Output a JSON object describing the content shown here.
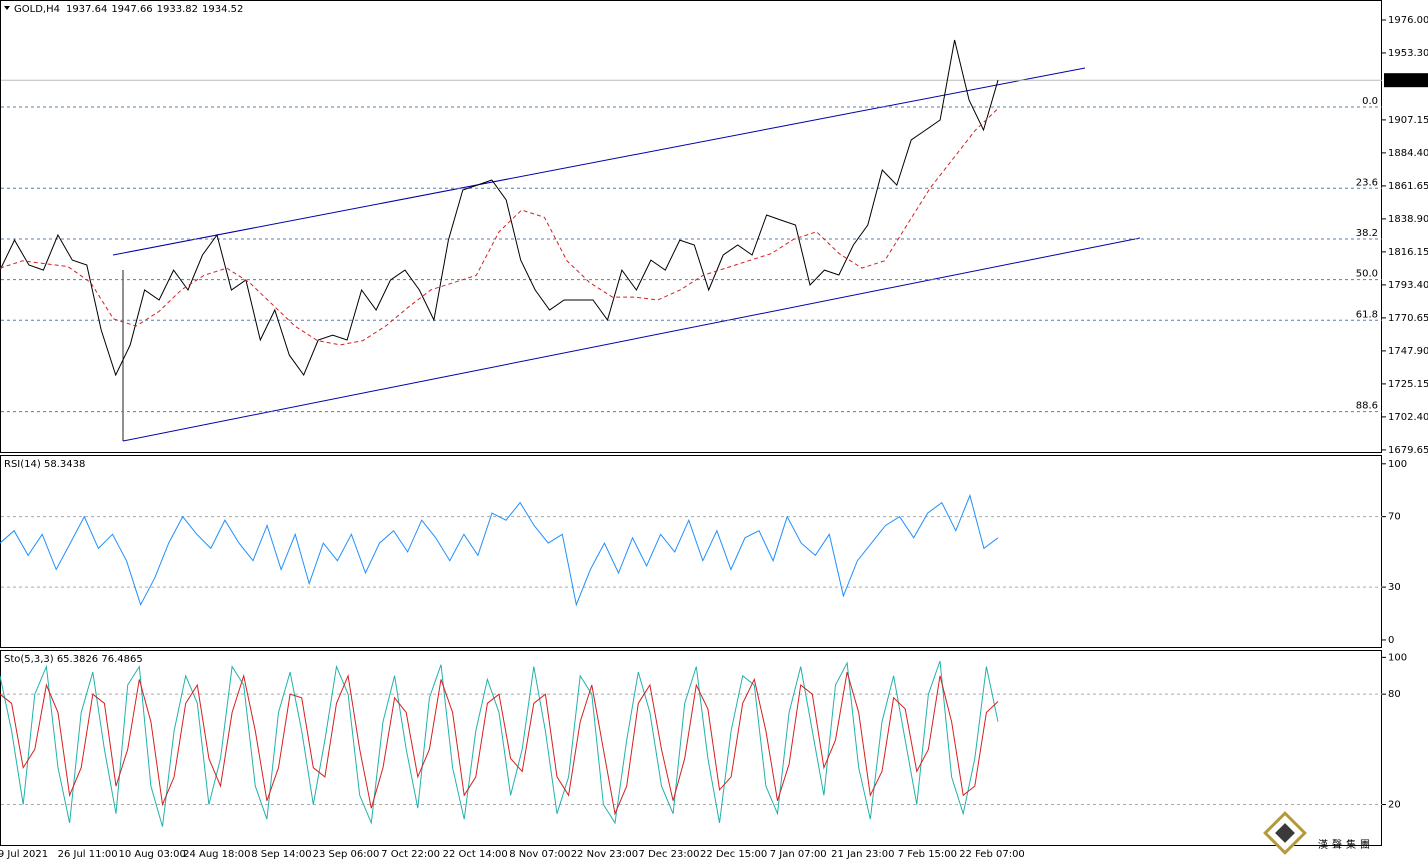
{
  "chart_data": [
    {
      "type": "line",
      "title": "GOLD,H4",
      "ohlc": [
        1937.64,
        1947.66,
        1933.82,
        1934.52
      ],
      "x_labels": [
        "9 Jul 2021",
        "26 Jul 11:00",
        "10 Aug 03:00",
        "24 Aug 18:00",
        "8 Sep 14:00",
        "23 Sep 06:00",
        "7 Oct 22:00",
        "22 Oct 14:00",
        "8 Nov 07:00",
        "22 Nov 23:00",
        "7 Dec 23:00",
        "22 Dec 15:00",
        "7 Jan 07:00",
        "21 Jan 23:00",
        "7 Feb 15:00",
        "22 Feb 07:00"
      ],
      "series": [
        {
          "color": "#000000",
          "dashed": false,
          "values": [
            1803.6,
            1824.3,
            1807.1,
            1803.6,
            1827.8,
            1810.5,
            1807.1,
            1762.3,
            1731.3,
            1752.0,
            1789.9,
            1783.0,
            1803.6,
            1789.9,
            1814.0,
            1827.8,
            1789.9,
            1796.8,
            1755.4,
            1776.1,
            1745.0,
            1731.3,
            1755.4,
            1758.8,
            1755.4,
            1789.9,
            1776.1,
            1796.8,
            1803.6,
            1789.9,
            1769.2,
            1824.3,
            1858.8,
            1862.2,
            1865.7,
            1851.9,
            1810.5,
            1789.9,
            1776.1,
            1783.0,
            1783.0,
            1783.0,
            1769.2,
            1803.6,
            1789.9,
            1810.5,
            1803.6,
            1824.3,
            1820.9,
            1789.9,
            1814.0,
            1820.9,
            1814.0,
            1841.6,
            1838.1,
            1834.7,
            1793.3,
            1803.6,
            1800.2,
            1820.9,
            1834.7,
            1872.6,
            1862.2,
            1893.3,
            1900.2,
            1907.1,
            1962.2,
            1920.8,
            1900.2,
            1934.5
          ]
        },
        {
          "color": "#d42020",
          "dashed": true,
          "values": [
            1805,
            1810,
            1808,
            1806,
            1795,
            1770,
            1765,
            1775,
            1790,
            1800,
            1805,
            1795,
            1780,
            1765,
            1755,
            1752,
            1755,
            1765,
            1778,
            1790,
            1795,
            1800,
            1830,
            1845,
            1840,
            1810,
            1795,
            1785,
            1785,
            1783,
            1790,
            1800,
            1805,
            1810,
            1815,
            1825,
            1830,
            1815,
            1805,
            1810,
            1835,
            1860,
            1880,
            1900,
            1915
          ]
        }
      ],
      "ylim": [
        1678.2,
        1989.8
      ],
      "yticks": [
        {
          "value": 1976,
          "label": "1976.00"
        },
        {
          "value": 1953.3,
          "label": "1953.30"
        },
        {
          "value": 1907.15,
          "label": "1907.15"
        },
        {
          "value": 1884.4,
          "label": "1884.40"
        },
        {
          "value": 1861.65,
          "label": "1861.65"
        },
        {
          "value": 1838.9,
          "label": "1838.90"
        },
        {
          "value": 1816.15,
          "label": "1816.15"
        },
        {
          "value": 1793.4,
          "label": "1793.40"
        },
        {
          "value": 1770.65,
          "label": "1770.65"
        },
        {
          "value": 1747.9,
          "label": "1747.90"
        },
        {
          "value": 1725.15,
          "label": "1725.15"
        },
        {
          "value": 1702.4,
          "label": "1702.40"
        },
        {
          "value": 1679.65,
          "label": "1679.65"
        }
      ],
      "current_price": 1934.52,
      "fib_levels": [
        {
          "label": "0.0",
          "price": 1916
        },
        {
          "label": "23.6",
          "price": 1860
        },
        {
          "label": "38.2",
          "price": 1825
        },
        {
          "label": "50.0",
          "price": 1797
        },
        {
          "label": "61.8",
          "price": 1769
        },
        {
          "label": "88.6",
          "price": 1706
        }
      ],
      "watermark": "漢聲集團"
    },
    {
      "type": "line",
      "title": "RSI(14) 58.3438",
      "series": [
        {
          "color": "#1e90ff",
          "dashed": false,
          "values": [
            55,
            62,
            48,
            60,
            40,
            55,
            70,
            52,
            60,
            45,
            20,
            35,
            55,
            70,
            60,
            52,
            68,
            55,
            45,
            65,
            40,
            60,
            32,
            55,
            45,
            60,
            38,
            55,
            62,
            50,
            68,
            58,
            45,
            60,
            48,
            72,
            68,
            78,
            65,
            55,
            60,
            20,
            40,
            55,
            38,
            58,
            42,
            60,
            50,
            68,
            45,
            62,
            40,
            58,
            62,
            45,
            70,
            55,
            48,
            60,
            25,
            45,
            55,
            65,
            70,
            58,
            72,
            78,
            62,
            82,
            52,
            58
          ]
        }
      ],
      "ylim": [
        -4,
        105
      ],
      "yticks": [
        0,
        30,
        70,
        100
      ],
      "levels": [
        30,
        70
      ]
    },
    {
      "type": "line",
      "title": "Sto(5,3,3) 65.3826 76.4865",
      "series": [
        {
          "color": "#20b2aa",
          "dashed": false,
          "values": [
            90,
            60,
            20,
            80,
            95,
            40,
            10,
            70,
            92,
            50,
            15,
            85,
            95,
            30,
            8,
            60,
            90,
            75,
            20,
            45,
            95,
            85,
            30,
            12,
            70,
            92,
            60,
            20,
            55,
            95,
            80,
            25,
            10,
            65,
            90,
            50,
            18,
            78,
            96,
            40,
            12,
            60,
            88,
            70,
            25,
            50,
            95,
            60,
            15,
            35,
            90,
            80,
            20,
            10,
            55,
            92,
            70,
            30,
            15,
            75,
            95,
            45,
            10,
            60,
            90,
            85,
            30,
            15,
            70,
            95,
            60,
            25,
            85,
            97,
            40,
            12,
            65,
            90,
            55,
            20,
            80,
            98,
            35,
            15,
            45,
            95,
            65
          ]
        },
        {
          "color": "#d42020",
          "dashed": false,
          "values": [
            80,
            75,
            40,
            50,
            85,
            70,
            25,
            40,
            80,
            75,
            30,
            50,
            88,
            65,
            20,
            35,
            75,
            85,
            45,
            30,
            70,
            90,
            60,
            22,
            40,
            80,
            78,
            40,
            35,
            75,
            90,
            50,
            18,
            40,
            78,
            70,
            35,
            50,
            88,
            70,
            25,
            35,
            75,
            80,
            45,
            38,
            75,
            80,
            35,
            25,
            65,
            85,
            50,
            15,
            30,
            75,
            85,
            50,
            22,
            45,
            85,
            72,
            28,
            35,
            75,
            88,
            60,
            22,
            42,
            85,
            80,
            40,
            55,
            92,
            70,
            25,
            38,
            78,
            72,
            38,
            50,
            90,
            65,
            25,
            30,
            70,
            76
          ]
        }
      ],
      "ylim": [
        -2,
        104
      ],
      "yticks": [
        20,
        80,
        100
      ],
      "levels": [
        20,
        80
      ]
    }
  ]
}
